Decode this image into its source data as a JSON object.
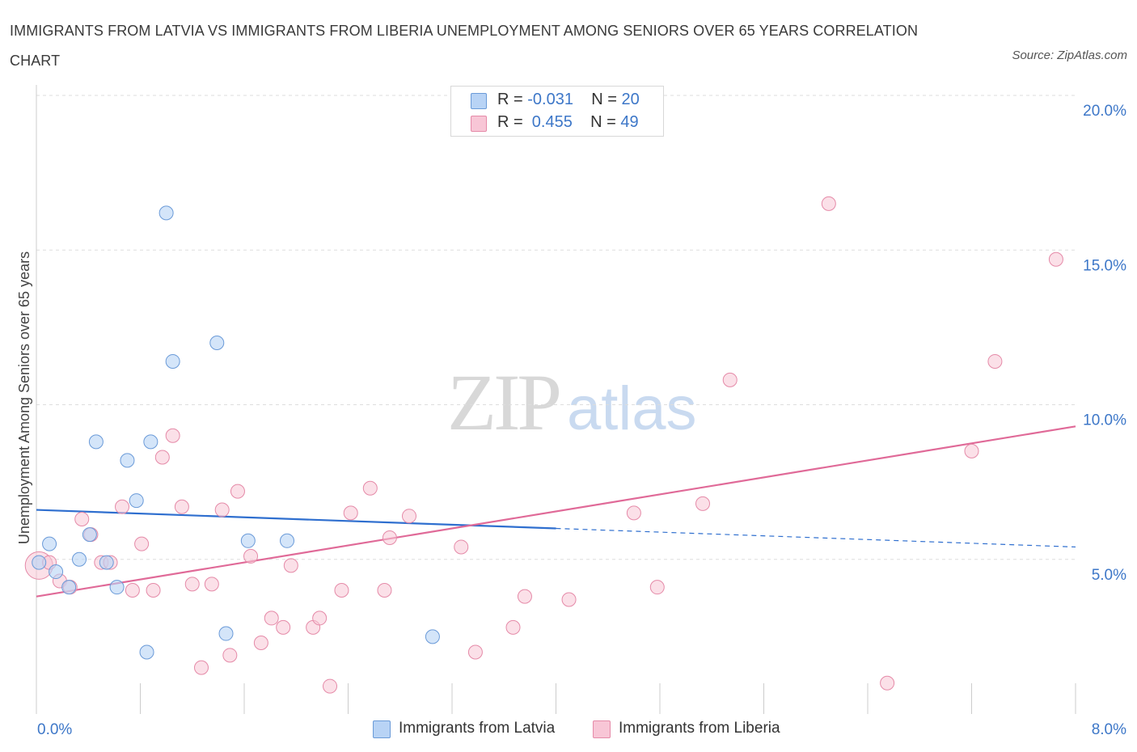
{
  "title": "IMMIGRANTS FROM LATVIA VS IMMIGRANTS FROM LIBERIA UNEMPLOYMENT AMONG SENIORS OVER 65 YEARS CORRELATION CHART",
  "source": "Source: ZipAtlas.com",
  "watermark": {
    "zip": "ZIP",
    "atlas": "atlas"
  },
  "legend": {
    "rows": [
      {
        "r_label": "R = ",
        "r_value": "-0.031",
        "n_label": "N = ",
        "n_value": "20"
      },
      {
        "r_label": "R = ",
        "r_value": " 0.455",
        "n_label": "N = ",
        "n_value": "49"
      }
    ]
  },
  "colors": {
    "latvia_fill": "#b8d3f5",
    "latvia_stroke": "#6a9ad8",
    "latvia_line": "#2f6fcf",
    "liberia_fill": "#f8c6d6",
    "liberia_stroke": "#e58aa8",
    "liberia_line": "#e06a98",
    "tick_label": "#3d77c8",
    "grid": "#dddddd"
  },
  "chart_data": {
    "type": "scatter",
    "title": "IMMIGRANTS FROM LATVIA VS IMMIGRANTS FROM LIBERIA UNEMPLOYMENT AMONG SENIORS OVER 65 YEARS CORRELATION CHART",
    "xlabel": "",
    "ylabel": "Unemployment Among Seniors over 65 years",
    "xlim": [
      0,
      8
    ],
    "ylim": [
      0,
      20
    ],
    "x_tick_labels": [
      "0.0%",
      "8.0%"
    ],
    "y_ticks": [
      5,
      10,
      15,
      20
    ],
    "y_tick_labels": [
      "5.0%",
      "10.0%",
      "15.0%",
      "20.0%"
    ],
    "grid": true,
    "legend_position": "bottom",
    "series": [
      {
        "name": "Immigrants from Latvia",
        "R": -0.031,
        "N": 20,
        "trend": {
          "x_start": 0,
          "y_start": 6.6,
          "x_solid_end": 4.0,
          "x_end": 8.0,
          "y_end": 5.4
        },
        "points": [
          [
            0.02,
            4.9
          ],
          [
            0.1,
            5.5
          ],
          [
            0.15,
            4.6
          ],
          [
            0.25,
            4.1
          ],
          [
            0.33,
            5.0
          ],
          [
            0.41,
            5.8
          ],
          [
            0.46,
            8.8
          ],
          [
            0.54,
            4.9
          ],
          [
            0.62,
            4.1
          ],
          [
            0.7,
            8.2
          ],
          [
            0.77,
            6.9
          ],
          [
            0.85,
            2.0
          ],
          [
            0.88,
            8.8
          ],
          [
            1.0,
            16.2
          ],
          [
            1.05,
            11.4
          ],
          [
            1.39,
            12.0
          ],
          [
            1.46,
            2.6
          ],
          [
            1.63,
            5.6
          ],
          [
            1.93,
            5.6
          ],
          [
            3.05,
            2.5
          ]
        ]
      },
      {
        "name": "Immigrants from Liberia",
        "R": 0.455,
        "N": 49,
        "trend": {
          "x_start": 0,
          "y_start": 3.8,
          "x_end": 8.0,
          "y_end": 9.3
        },
        "points": [
          [
            0.02,
            4.8
          ],
          [
            0.1,
            4.9
          ],
          [
            0.18,
            4.3
          ],
          [
            0.26,
            4.1
          ],
          [
            0.35,
            6.3
          ],
          [
            0.42,
            5.8
          ],
          [
            0.5,
            4.9
          ],
          [
            0.57,
            4.9
          ],
          [
            0.66,
            6.7
          ],
          [
            0.74,
            4.0
          ],
          [
            0.81,
            5.5
          ],
          [
            0.9,
            4.0
          ],
          [
            0.97,
            8.3
          ],
          [
            1.05,
            9.0
          ],
          [
            1.12,
            6.7
          ],
          [
            1.2,
            4.2
          ],
          [
            1.27,
            1.5
          ],
          [
            1.35,
            4.2
          ],
          [
            1.43,
            6.6
          ],
          [
            1.49,
            1.9
          ],
          [
            1.55,
            7.2
          ],
          [
            1.65,
            5.1
          ],
          [
            1.73,
            2.3
          ],
          [
            1.81,
            3.1
          ],
          [
            1.9,
            2.8
          ],
          [
            1.96,
            4.8
          ],
          [
            2.13,
            2.8
          ],
          [
            2.18,
            3.1
          ],
          [
            2.26,
            0.9
          ],
          [
            2.35,
            4.0
          ],
          [
            2.42,
            6.5
          ],
          [
            2.57,
            7.3
          ],
          [
            2.68,
            4.0
          ],
          [
            2.72,
            5.7
          ],
          [
            2.87,
            6.4
          ],
          [
            3.27,
            5.4
          ],
          [
            3.38,
            2.0
          ],
          [
            3.67,
            2.8
          ],
          [
            3.76,
            3.8
          ],
          [
            4.1,
            3.7
          ],
          [
            4.6,
            6.5
          ],
          [
            4.78,
            4.1
          ],
          [
            5.13,
            6.8
          ],
          [
            5.34,
            10.8
          ],
          [
            6.1,
            16.5
          ],
          [
            6.55,
            1.0
          ],
          [
            7.2,
            8.5
          ],
          [
            7.38,
            11.4
          ],
          [
            7.85,
            14.7
          ]
        ]
      }
    ]
  }
}
